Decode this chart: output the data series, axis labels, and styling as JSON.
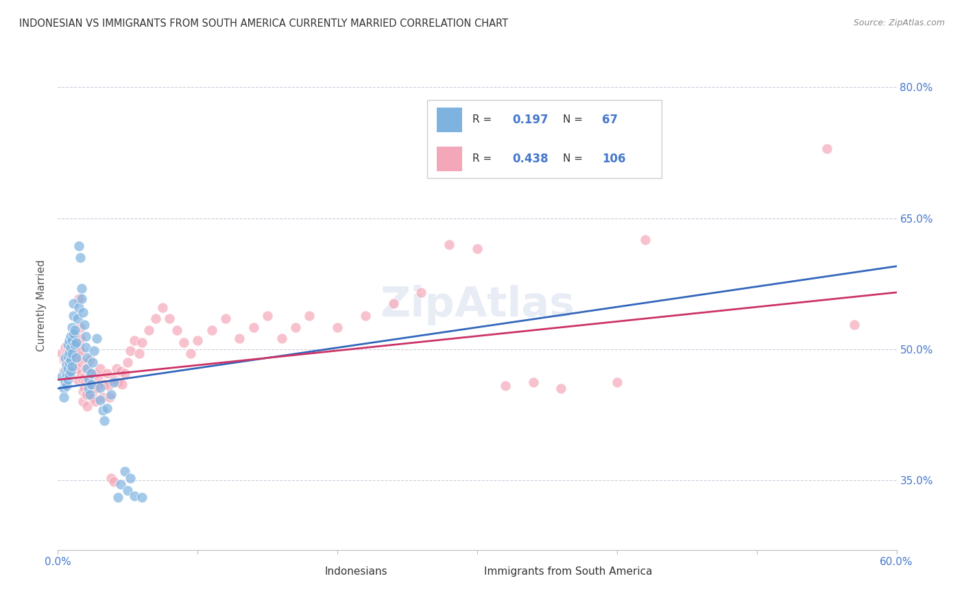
{
  "title": "INDONESIAN VS IMMIGRANTS FROM SOUTH AMERICA CURRENTLY MARRIED CORRELATION CHART",
  "source": "Source: ZipAtlas.com",
  "ylabel": "Currently Married",
  "watermark": "ZipAtlas",
  "r1": 0.197,
  "n1": 67,
  "r2": 0.438,
  "n2": 106,
  "xmin": 0.0,
  "xmax": 0.6,
  "ymin": 0.27,
  "ymax": 0.83,
  "yticks": [
    0.35,
    0.5,
    0.65,
    0.8
  ],
  "ytick_labels": [
    "35.0%",
    "50.0%",
    "65.0%",
    "80.0%"
  ],
  "xtick_labels": [
    "0.0%",
    "",
    "",
    "",
    "",
    "",
    "60.0%"
  ],
  "color_blue": "#7EB3E0",
  "color_pink": "#F4A7B9",
  "trendline_blue": "#3366BB",
  "trendline_pink": "#CC3366",
  "background": "#FFFFFF",
  "grid_color": "#CCCCDD",
  "title_color": "#333333",
  "axis_label_color": "#4477CC",
  "blue_scatter": [
    [
      0.003,
      0.468
    ],
    [
      0.004,
      0.455
    ],
    [
      0.004,
      0.445
    ],
    [
      0.005,
      0.462
    ],
    [
      0.005,
      0.475
    ],
    [
      0.005,
      0.49
    ],
    [
      0.006,
      0.458
    ],
    [
      0.006,
      0.472
    ],
    [
      0.006,
      0.482
    ],
    [
      0.006,
      0.468
    ],
    [
      0.007,
      0.465
    ],
    [
      0.007,
      0.478
    ],
    [
      0.007,
      0.492
    ],
    [
      0.007,
      0.505
    ],
    [
      0.008,
      0.47
    ],
    [
      0.008,
      0.484
    ],
    [
      0.008,
      0.496
    ],
    [
      0.008,
      0.51
    ],
    [
      0.009,
      0.475
    ],
    [
      0.009,
      0.488
    ],
    [
      0.009,
      0.502
    ],
    [
      0.009,
      0.515
    ],
    [
      0.01,
      0.48
    ],
    [
      0.01,
      0.495
    ],
    [
      0.01,
      0.51
    ],
    [
      0.01,
      0.525
    ],
    [
      0.011,
      0.538
    ],
    [
      0.011,
      0.552
    ],
    [
      0.011,
      0.518
    ],
    [
      0.012,
      0.505
    ],
    [
      0.012,
      0.522
    ],
    [
      0.013,
      0.49
    ],
    [
      0.013,
      0.508
    ],
    [
      0.014,
      0.535
    ],
    [
      0.015,
      0.548
    ],
    [
      0.015,
      0.618
    ],
    [
      0.016,
      0.605
    ],
    [
      0.017,
      0.57
    ],
    [
      0.017,
      0.558
    ],
    [
      0.018,
      0.542
    ],
    [
      0.019,
      0.528
    ],
    [
      0.02,
      0.515
    ],
    [
      0.02,
      0.502
    ],
    [
      0.021,
      0.49
    ],
    [
      0.021,
      0.478
    ],
    [
      0.022,
      0.466
    ],
    [
      0.022,
      0.455
    ],
    [
      0.023,
      0.448
    ],
    [
      0.024,
      0.46
    ],
    [
      0.024,
      0.472
    ],
    [
      0.025,
      0.485
    ],
    [
      0.026,
      0.498
    ],
    [
      0.028,
      0.512
    ],
    [
      0.03,
      0.456
    ],
    [
      0.03,
      0.442
    ],
    [
      0.032,
      0.43
    ],
    [
      0.033,
      0.418
    ],
    [
      0.035,
      0.432
    ],
    [
      0.038,
      0.448
    ],
    [
      0.04,
      0.462
    ],
    [
      0.043,
      0.33
    ],
    [
      0.045,
      0.345
    ],
    [
      0.048,
      0.36
    ],
    [
      0.05,
      0.338
    ],
    [
      0.052,
      0.352
    ],
    [
      0.055,
      0.332
    ],
    [
      0.06,
      0.33
    ]
  ],
  "pink_scatter": [
    [
      0.003,
      0.495
    ],
    [
      0.004,
      0.488
    ],
    [
      0.004,
      0.475
    ],
    [
      0.005,
      0.502
    ],
    [
      0.005,
      0.488
    ],
    [
      0.006,
      0.495
    ],
    [
      0.006,
      0.478
    ],
    [
      0.007,
      0.488
    ],
    [
      0.007,
      0.502
    ],
    [
      0.007,
      0.475
    ],
    [
      0.008,
      0.492
    ],
    [
      0.008,
      0.505
    ],
    [
      0.008,
      0.478
    ],
    [
      0.009,
      0.498
    ],
    [
      0.009,
      0.485
    ],
    [
      0.01,
      0.508
    ],
    [
      0.01,
      0.495
    ],
    [
      0.01,
      0.475
    ],
    [
      0.011,
      0.512
    ],
    [
      0.011,
      0.498
    ],
    [
      0.011,
      0.485
    ],
    [
      0.012,
      0.518
    ],
    [
      0.012,
      0.505
    ],
    [
      0.013,
      0.492
    ],
    [
      0.013,
      0.478
    ],
    [
      0.014,
      0.465
    ],
    [
      0.014,
      0.478
    ],
    [
      0.015,
      0.492
    ],
    [
      0.015,
      0.505
    ],
    [
      0.015,
      0.558
    ],
    [
      0.016,
      0.525
    ],
    [
      0.016,
      0.512
    ],
    [
      0.016,
      0.498
    ],
    [
      0.017,
      0.485
    ],
    [
      0.017,
      0.472
    ],
    [
      0.018,
      0.465
    ],
    [
      0.018,
      0.452
    ],
    [
      0.018,
      0.44
    ],
    [
      0.019,
      0.455
    ],
    [
      0.019,
      0.468
    ],
    [
      0.02,
      0.478
    ],
    [
      0.02,
      0.462
    ],
    [
      0.02,
      0.448
    ],
    [
      0.021,
      0.435
    ],
    [
      0.021,
      0.448
    ],
    [
      0.022,
      0.462
    ],
    [
      0.022,
      0.475
    ],
    [
      0.023,
      0.488
    ],
    [
      0.023,
      0.472
    ],
    [
      0.024,
      0.458
    ],
    [
      0.025,
      0.445
    ],
    [
      0.025,
      0.458
    ],
    [
      0.026,
      0.472
    ],
    [
      0.026,
      0.455
    ],
    [
      0.027,
      0.44
    ],
    [
      0.028,
      0.455
    ],
    [
      0.029,
      0.468
    ],
    [
      0.03,
      0.478
    ],
    [
      0.03,
      0.46
    ],
    [
      0.032,
      0.445
    ],
    [
      0.033,
      0.46
    ],
    [
      0.035,
      0.472
    ],
    [
      0.036,
      0.458
    ],
    [
      0.037,
      0.445
    ],
    [
      0.038,
      0.352
    ],
    [
      0.04,
      0.348
    ],
    [
      0.04,
      0.465
    ],
    [
      0.042,
      0.478
    ],
    [
      0.043,
      0.462
    ],
    [
      0.045,
      0.475
    ],
    [
      0.046,
      0.46
    ],
    [
      0.048,
      0.472
    ],
    [
      0.05,
      0.485
    ],
    [
      0.052,
      0.498
    ],
    [
      0.055,
      0.51
    ],
    [
      0.058,
      0.495
    ],
    [
      0.06,
      0.508
    ],
    [
      0.065,
      0.522
    ],
    [
      0.07,
      0.535
    ],
    [
      0.075,
      0.548
    ],
    [
      0.08,
      0.535
    ],
    [
      0.085,
      0.522
    ],
    [
      0.09,
      0.508
    ],
    [
      0.095,
      0.495
    ],
    [
      0.1,
      0.51
    ],
    [
      0.11,
      0.522
    ],
    [
      0.12,
      0.535
    ],
    [
      0.13,
      0.512
    ],
    [
      0.14,
      0.525
    ],
    [
      0.15,
      0.538
    ],
    [
      0.16,
      0.512
    ],
    [
      0.17,
      0.525
    ],
    [
      0.18,
      0.538
    ],
    [
      0.2,
      0.525
    ],
    [
      0.22,
      0.538
    ],
    [
      0.24,
      0.552
    ],
    [
      0.26,
      0.565
    ],
    [
      0.28,
      0.62
    ],
    [
      0.3,
      0.615
    ],
    [
      0.32,
      0.458
    ],
    [
      0.34,
      0.462
    ],
    [
      0.36,
      0.455
    ],
    [
      0.4,
      0.462
    ],
    [
      0.42,
      0.625
    ],
    [
      0.55,
      0.73
    ],
    [
      0.57,
      0.528
    ]
  ]
}
